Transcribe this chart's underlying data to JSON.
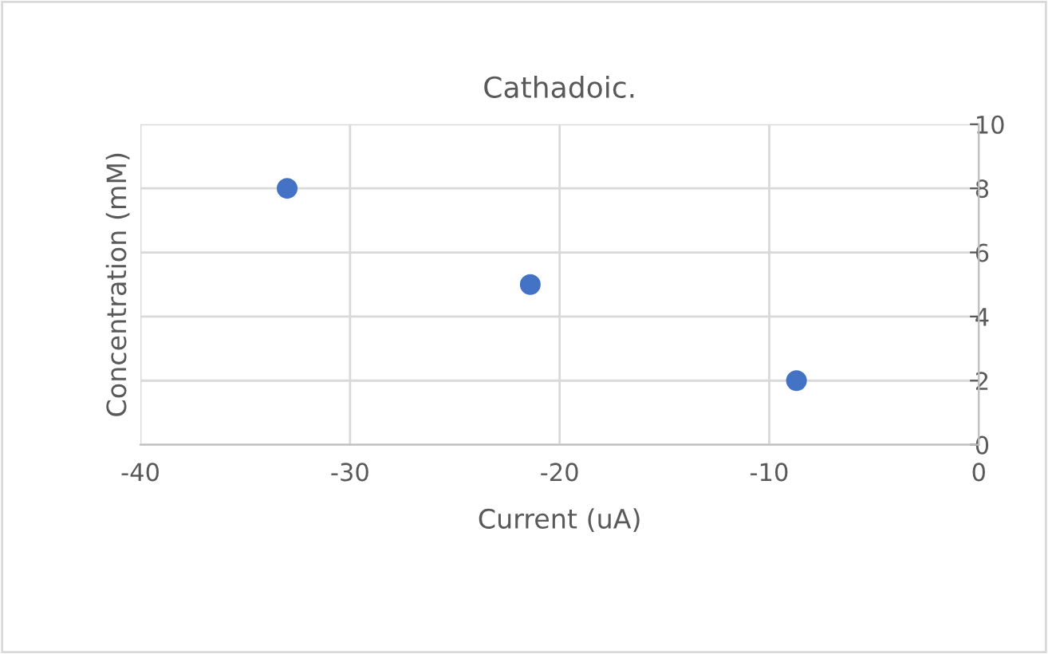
{
  "chart_data": {
    "type": "scatter",
    "title": "Cathadoic.",
    "xlabel": "Current (uA)",
    "ylabel": "Concentration (mM)",
    "x": [
      -33,
      -21.4,
      -8.7
    ],
    "series": [
      {
        "color": "#4472c4",
        "values": [
          8,
          5,
          2
        ]
      }
    ],
    "xlim": [
      -40,
      0
    ],
    "xticks": [
      -40,
      -30,
      -20,
      -10,
      0
    ],
    "ylim": [
      0,
      10
    ],
    "yticks": [
      0,
      2,
      4,
      6,
      8,
      10
    ],
    "grid": true,
    "marker": "circle"
  }
}
